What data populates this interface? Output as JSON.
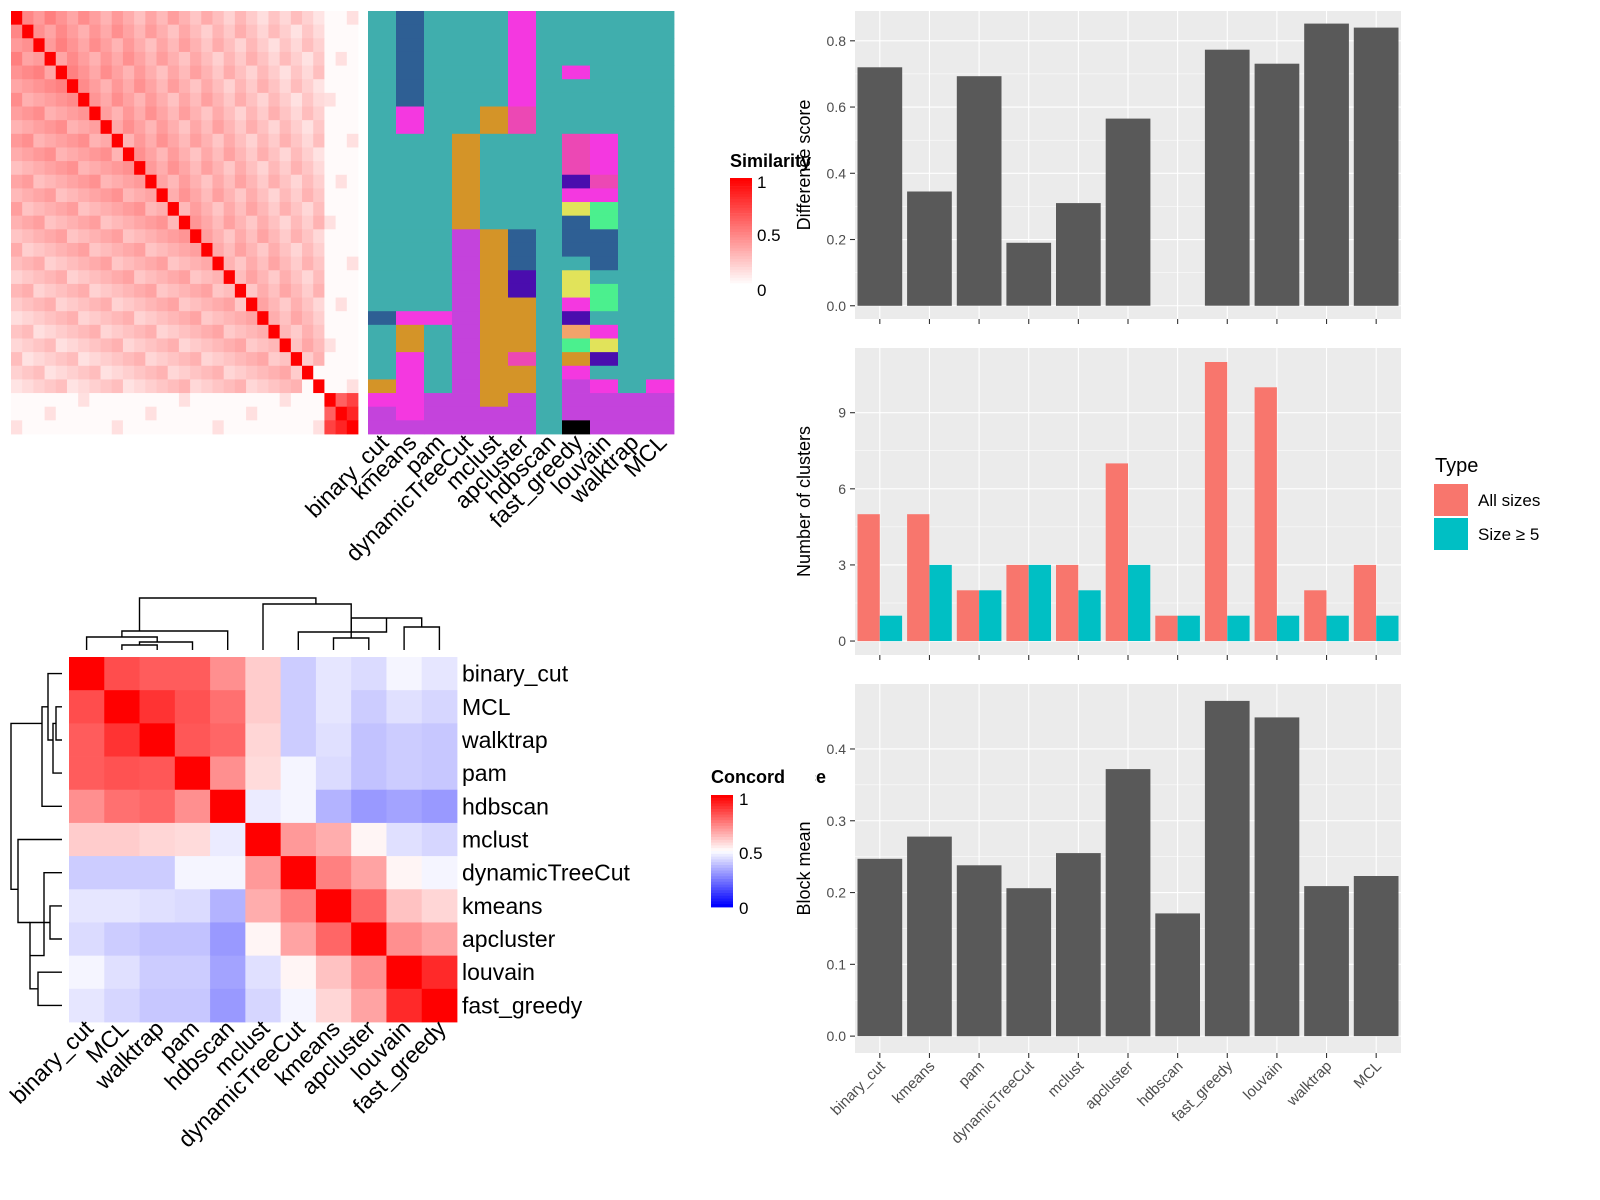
{
  "colors": {
    "panel_bg": "#EBEBEB",
    "grid": "#FFFFFF",
    "bar": "#595959",
    "all_sizes": "#F8766D",
    "size_ge5": "#00BFC4",
    "heat_high": "#FF0000",
    "heat_mid_white": "#FFFFFF",
    "heat_low_blue": "#0000FF",
    "class_teal": "#40AEAD",
    "class_navy": "#2E5F94",
    "class_magenta": "#F438E0",
    "class_ochre": "#D49428",
    "class_purple": "#C443DC",
    "class_indigo": "#4A0DAE",
    "class_pink": "#EC48B4",
    "class_yellow": "#E1E35A",
    "class_green": "#4BF08E",
    "class_salmon": "#F3A36A"
  },
  "similarity_legend": {
    "title": "Similarity",
    "ticks": [
      "1",
      "0.5",
      "0"
    ]
  },
  "concordance_legend": {
    "title": "Concordance",
    "ticks": [
      "1",
      "0.5",
      "0"
    ]
  },
  "method_columns": [
    "binary_cut",
    "kmeans",
    "pam",
    "dynamicTreeCut",
    "mclust",
    "apcluster",
    "hdbscan",
    "fast_greedy",
    "louvain",
    "walktrap",
    "MCL"
  ],
  "concordance_order": [
    "binary_cut",
    "MCL",
    "walktrap",
    "pam",
    "hdbscan",
    "mclust",
    "dynamicTreeCut",
    "kmeans",
    "apcluster",
    "louvain",
    "fast_greedy"
  ],
  "chart_data": [
    {
      "type": "bar",
      "categories": [
        "binary_cut",
        "kmeans",
        "pam",
        "dynamicTreeCut",
        "mclust",
        "apcluster",
        "hdbscan",
        "fast_greedy",
        "louvain",
        "walktrap",
        "MCL"
      ],
      "values": [
        0.72,
        0.345,
        0.693,
        0.19,
        0.31,
        0.565,
        0,
        0.773,
        0.731,
        0.852,
        0.84
      ],
      "xlabel": "",
      "ylabel": "Difference score",
      "ylim": [
        -0.04,
        0.89
      ],
      "yticks": [
        "0.0",
        "0.2",
        "0.4",
        "0.6",
        "0.8"
      ],
      "grid": true
    },
    {
      "type": "bar",
      "categories": [
        "binary_cut",
        "kmeans",
        "pam",
        "dynamicTreeCut",
        "mclust",
        "apcluster",
        "hdbscan",
        "fast_greedy",
        "louvain",
        "walktrap",
        "MCL"
      ],
      "series": [
        {
          "name": "All sizes",
          "values": [
            5,
            5,
            2,
            3,
            3,
            7,
            1,
            11,
            10,
            2,
            3
          ]
        },
        {
          "name": "Size ≥ 5",
          "values": [
            1,
            3,
            2,
            3,
            2,
            3,
            1,
            1,
            1,
            1,
            1
          ]
        }
      ],
      "xlabel": "",
      "ylabel": "Number of clusters",
      "ylim": [
        -0.55,
        11.55
      ],
      "yticks": [
        "0",
        "3",
        "6",
        "9"
      ],
      "legend": {
        "title": "Type",
        "position": "right"
      },
      "grid": true
    },
    {
      "type": "bar",
      "categories": [
        "binary_cut",
        "kmeans",
        "pam",
        "dynamicTreeCut",
        "mclust",
        "apcluster",
        "hdbscan",
        "fast_greedy",
        "louvain",
        "walktrap",
        "MCL"
      ],
      "values": [
        0.247,
        0.278,
        0.238,
        0.206,
        0.255,
        0.372,
        0.171,
        0.467,
        0.444,
        0.209,
        0.223
      ],
      "xlabel": "",
      "ylabel": "Block mean",
      "ylim": [
        -0.0235,
        0.4905
      ],
      "yticks": [
        "0.0",
        "0.1",
        "0.2",
        "0.3",
        "0.4"
      ],
      "grid": true
    },
    {
      "type": "heatmap",
      "rows": [
        "binary_cut",
        "MCL",
        "walktrap",
        "pam",
        "hdbscan",
        "mclust",
        "dynamicTreeCut",
        "kmeans",
        "apcluster",
        "louvain",
        "fast_greedy"
      ],
      "cols": [
        "binary_cut",
        "MCL",
        "walktrap",
        "pam",
        "hdbscan",
        "mclust",
        "dynamicTreeCut",
        "kmeans",
        "apcluster",
        "louvain",
        "fast_greedy"
      ],
      "values": [
        [
          1,
          0.85,
          0.82,
          0.82,
          0.72,
          0.6,
          0.4,
          0.45,
          0.43,
          0.48,
          0.45
        ],
        [
          0.85,
          1,
          0.9,
          0.84,
          0.78,
          0.6,
          0.4,
          0.45,
          0.4,
          0.44,
          0.42
        ],
        [
          0.82,
          0.9,
          1,
          0.83,
          0.8,
          0.58,
          0.4,
          0.44,
          0.38,
          0.4,
          0.39
        ],
        [
          0.82,
          0.84,
          0.83,
          1,
          0.72,
          0.57,
          0.48,
          0.43,
          0.38,
          0.4,
          0.39
        ],
        [
          0.72,
          0.78,
          0.8,
          0.72,
          1,
          0.46,
          0.48,
          0.35,
          0.3,
          0.32,
          0.3
        ],
        [
          0.6,
          0.6,
          0.58,
          0.57,
          0.46,
          1,
          0.7,
          0.66,
          0.52,
          0.44,
          0.42
        ],
        [
          0.4,
          0.4,
          0.4,
          0.48,
          0.48,
          0.7,
          1,
          0.75,
          0.68,
          0.52,
          0.48
        ],
        [
          0.45,
          0.45,
          0.44,
          0.43,
          0.35,
          0.66,
          0.75,
          1,
          0.8,
          0.62,
          0.58
        ],
        [
          0.43,
          0.4,
          0.38,
          0.38,
          0.3,
          0.52,
          0.68,
          0.8,
          1,
          0.72,
          0.68
        ],
        [
          0.48,
          0.44,
          0.4,
          0.4,
          0.32,
          0.44,
          0.52,
          0.62,
          0.72,
          1,
          0.92
        ],
        [
          0.45,
          0.42,
          0.39,
          0.39,
          0.3,
          0.42,
          0.48,
          0.58,
          0.68,
          0.92,
          1
        ]
      ],
      "legend": {
        "title": "Concordance",
        "range": [
          0,
          1
        ]
      }
    }
  ]
}
